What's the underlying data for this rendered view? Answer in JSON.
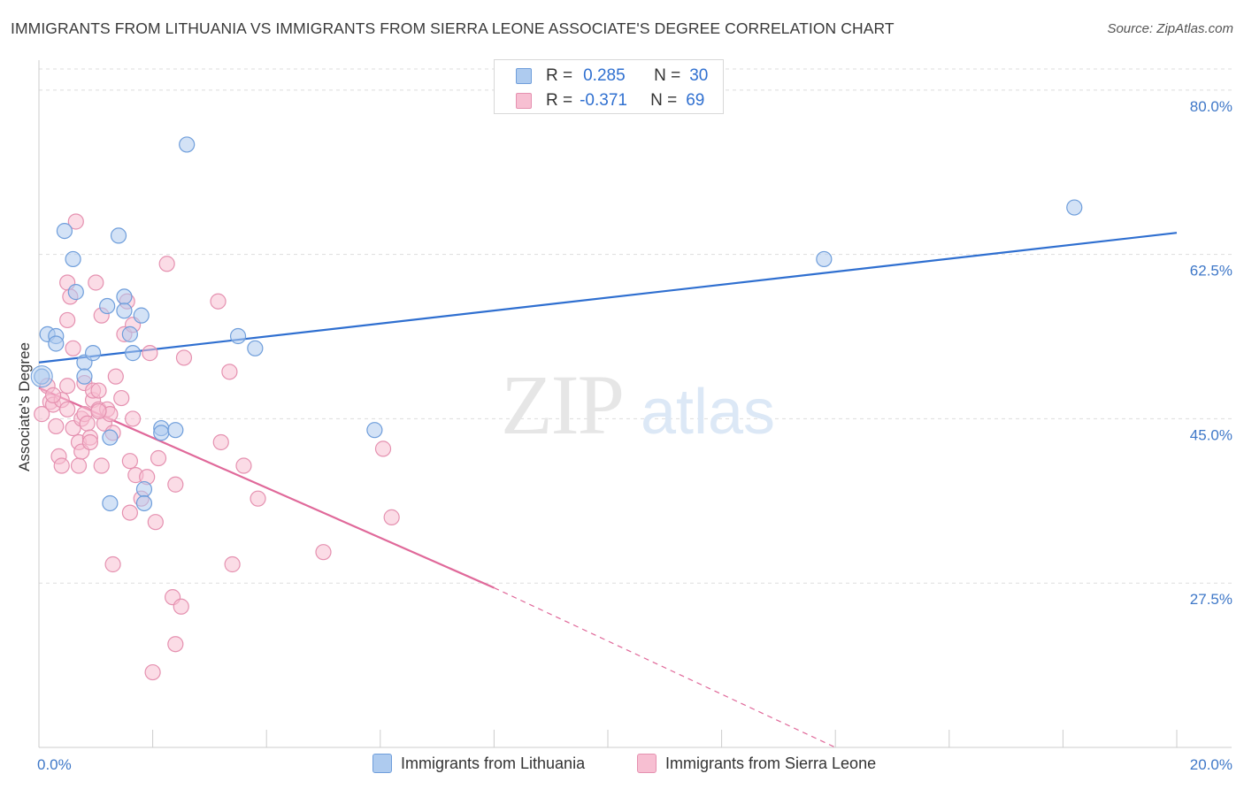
{
  "title": "IMMIGRANTS FROM LITHUANIA VS IMMIGRANTS FROM SIERRA LEONE ASSOCIATE'S DEGREE CORRELATION CHART",
  "source": "Source: ZipAtlas.com",
  "watermark": {
    "zip": "ZIP",
    "atlas": "atlas"
  },
  "legend_top": [
    {
      "r_label": "R =",
      "r_value": "0.285",
      "n_label": "N =",
      "n_value": "30"
    },
    {
      "r_label": "R =",
      "r_value": "-0.371",
      "n_label": "N =",
      "n_value": "69"
    }
  ],
  "colors": {
    "lithuania_fill": "#aecbef",
    "lithuania_stroke": "#6f9edb",
    "lithuania_line": "#2f6fd0",
    "sierra_fill": "#f7bfd2",
    "sierra_stroke": "#e591b0",
    "sierra_line": "#e0699a",
    "axis_label": "#3f78c8",
    "grid": "#dddddd"
  },
  "chart_data": {
    "type": "scatter",
    "title": "IMMIGRANTS FROM LITHUANIA VS IMMIGRANTS FROM SIERRA LEONE ASSOCIATE'S DEGREE CORRELATION CHART",
    "xlabel": "",
    "ylabel": "Associate's Degree",
    "xlim": [
      0,
      20
    ],
    "ylim": [
      10,
      83
    ],
    "x_tick_labels": [
      {
        "value": 0,
        "label": "0.0%"
      },
      {
        "value": 20,
        "label": "20.0%"
      }
    ],
    "x_minor_ticks": [
      2,
      4,
      6,
      8,
      10,
      12,
      14,
      16,
      18,
      20
    ],
    "y_ticks": [
      {
        "value": 27.5,
        "label": "27.5%"
      },
      {
        "value": 45.0,
        "label": "45.0%"
      },
      {
        "value": 62.5,
        "label": "62.5%"
      },
      {
        "value": 80.0,
        "label": "80.0%"
      }
    ],
    "grid": true,
    "legend_position": "top-center",
    "series": [
      {
        "name": "Immigrants from Lithuania",
        "color": "#aecbef",
        "points": [
          [
            0.05,
            49.5
          ],
          [
            0.15,
            54.0
          ],
          [
            0.3,
            53.8
          ],
          [
            0.3,
            53.0
          ],
          [
            0.45,
            65.0
          ],
          [
            0.6,
            62.0
          ],
          [
            0.65,
            58.5
          ],
          [
            0.8,
            51.0
          ],
          [
            0.8,
            49.5
          ],
          [
            0.95,
            52.0
          ],
          [
            1.2,
            57.0
          ],
          [
            1.4,
            64.5
          ],
          [
            1.5,
            58.0
          ],
          [
            1.5,
            56.5
          ],
          [
            1.65,
            52.0
          ],
          [
            1.6,
            54.0
          ],
          [
            1.25,
            43.0
          ],
          [
            1.25,
            36.0
          ],
          [
            1.8,
            56.0
          ],
          [
            1.85,
            37.5
          ],
          [
            1.85,
            36.0
          ],
          [
            2.15,
            44.0
          ],
          [
            2.15,
            43.5
          ],
          [
            2.4,
            43.8
          ],
          [
            2.6,
            74.2
          ],
          [
            3.5,
            53.8
          ],
          [
            3.8,
            52.5
          ],
          [
            5.9,
            43.8
          ],
          [
            13.8,
            62.0
          ],
          [
            18.2,
            67.5
          ]
        ]
      },
      {
        "name": "Immigrants from Sierra Leone",
        "color": "#f7bfd2",
        "points": [
          [
            0.05,
            45.5
          ],
          [
            0.15,
            48.5
          ],
          [
            0.2,
            46.8
          ],
          [
            0.25,
            46.5
          ],
          [
            0.3,
            44.2
          ],
          [
            0.35,
            41.0
          ],
          [
            0.4,
            47.0
          ],
          [
            0.4,
            40.0
          ],
          [
            0.5,
            59.5
          ],
          [
            0.5,
            46.0
          ],
          [
            0.5,
            48.5
          ],
          [
            0.5,
            55.5
          ],
          [
            0.55,
            58.0
          ],
          [
            0.6,
            44.0
          ],
          [
            0.65,
            66.0
          ],
          [
            0.6,
            52.5
          ],
          [
            0.7,
            40.0
          ],
          [
            0.7,
            42.5
          ],
          [
            0.75,
            45.0
          ],
          [
            0.75,
            41.5
          ],
          [
            0.8,
            45.5
          ],
          [
            0.8,
            48.8
          ],
          [
            0.85,
            44.5
          ],
          [
            0.9,
            43.0
          ],
          [
            0.9,
            42.5
          ],
          [
            0.95,
            47.0
          ],
          [
            0.95,
            48.0
          ],
          [
            1.0,
            59.5
          ],
          [
            1.05,
            48.0
          ],
          [
            1.05,
            46.0
          ],
          [
            1.1,
            56.0
          ],
          [
            1.1,
            40.0
          ],
          [
            1.15,
            44.5
          ],
          [
            1.2,
            46.0
          ],
          [
            1.25,
            45.5
          ],
          [
            1.3,
            43.5
          ],
          [
            1.3,
            29.5
          ],
          [
            1.35,
            49.5
          ],
          [
            1.45,
            47.2
          ],
          [
            1.5,
            54.0
          ],
          [
            1.55,
            57.5
          ],
          [
            1.6,
            35.0
          ],
          [
            1.6,
            40.5
          ],
          [
            1.65,
            45.0
          ],
          [
            1.65,
            55.0
          ],
          [
            1.7,
            39.0
          ],
          [
            1.8,
            36.5
          ],
          [
            1.9,
            38.8
          ],
          [
            1.95,
            52.0
          ],
          [
            2.05,
            34.0
          ],
          [
            2.1,
            40.8
          ],
          [
            2.0,
            18.0
          ],
          [
            2.25,
            61.5
          ],
          [
            2.35,
            26.0
          ],
          [
            2.4,
            38.0
          ],
          [
            2.4,
            21.0
          ],
          [
            2.5,
            25.0
          ],
          [
            2.55,
            51.5
          ],
          [
            3.15,
            57.5
          ],
          [
            3.2,
            42.5
          ],
          [
            3.35,
            50.0
          ],
          [
            3.4,
            29.5
          ],
          [
            3.6,
            40.0
          ],
          [
            3.85,
            36.5
          ],
          [
            5.0,
            30.8
          ],
          [
            6.05,
            41.8
          ],
          [
            6.2,
            34.5
          ],
          [
            0.25,
            47.5
          ],
          [
            1.05,
            45.8
          ]
        ]
      }
    ],
    "trend_lines": [
      {
        "series": "Immigrants from Lithuania",
        "x": [
          0,
          20
        ],
        "y": [
          51.0,
          64.8
        ],
        "style": "solid"
      },
      {
        "series": "Immigrants from Sierra Leone",
        "x": [
          0,
          8.0
        ],
        "y": [
          48.3,
          27.0
        ],
        "style": "solid"
      },
      {
        "series": "Immigrants from Sierra Leone",
        "x": [
          8.0,
          14.0
        ],
        "y": [
          27.0,
          10.0
        ],
        "style": "dashed"
      }
    ]
  }
}
